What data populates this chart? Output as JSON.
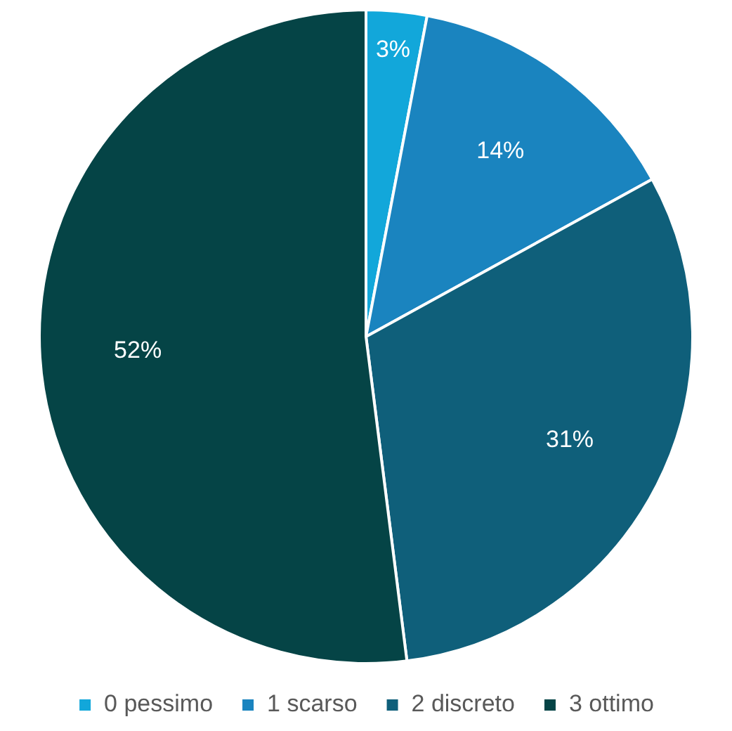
{
  "chart_data": {
    "type": "pie",
    "categories": [
      "0 pessimo",
      "1 scarso",
      "2 discreto",
      "3 ottimo"
    ],
    "values": [
      3,
      14,
      31,
      52
    ],
    "colors": [
      "#12a7da",
      "#1a84bf",
      "#0f5f7a",
      "#054446"
    ],
    "value_labels": [
      "3%",
      "14%",
      "31%",
      "52%"
    ],
    "legend": "bottom"
  }
}
